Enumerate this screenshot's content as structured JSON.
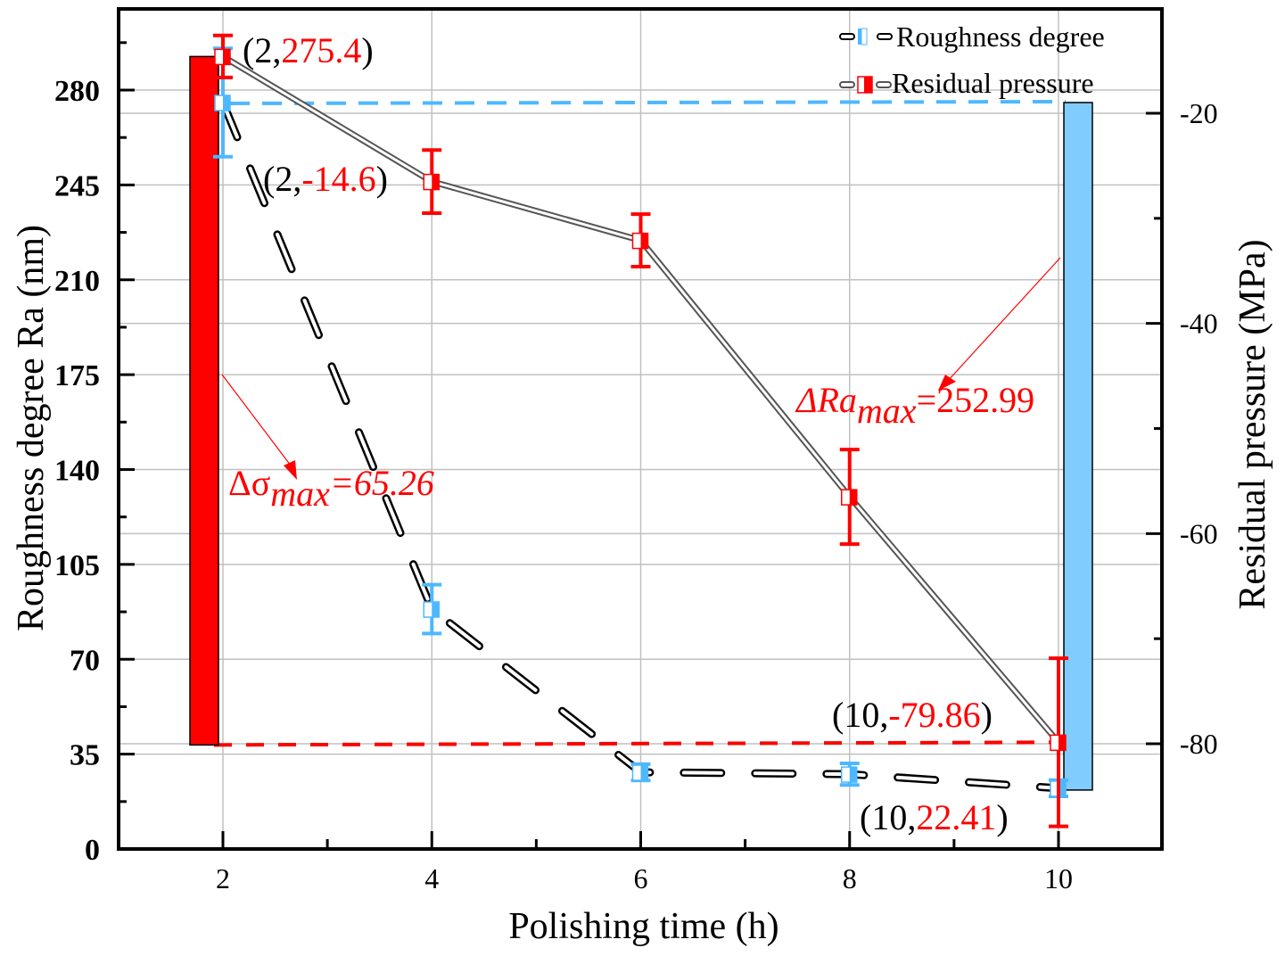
{
  "chart_data": {
    "type": "line",
    "title": "",
    "xlabel": "Polishing time (h)",
    "ylabel_left": "Roughness degree Ra (nm)",
    "ylabel_right": "Residual pressure (MPa)",
    "x": [
      2,
      4,
      6,
      8,
      10
    ],
    "xlim": [
      1,
      11
    ],
    "x_ticks": [
      "2",
      "4",
      "6",
      "8",
      "10"
    ],
    "ylim_left": [
      0,
      313
    ],
    "y_ticks_left": [
      "0",
      "35",
      "70",
      "105",
      "140",
      "175",
      "210",
      "245",
      "280"
    ],
    "ylim_right": [
      -90,
      -10
    ],
    "y_ticks_right": [
      "-20",
      "-40",
      "-60",
      "-80"
    ],
    "grid": true,
    "legend_position": "top-right",
    "series": [
      {
        "name": "Roughness degree",
        "axis": "left",
        "color": "#4db8ff",
        "line_style": "dashed",
        "values": [
          275.4,
          88.5,
          28.3,
          27.6,
          22.41
        ],
        "errors": [
          20,
          9,
          3,
          4,
          3
        ]
      },
      {
        "name": "Residual pressure",
        "axis": "right",
        "color": "#ff0000",
        "line_style": "solid",
        "values": [
          -14.6,
          -26.5,
          -32.1,
          -56.5,
          -79.86
        ],
        "errors": [
          2,
          3,
          2.5,
          4.5,
          8
        ]
      }
    ],
    "range_bars": [
      {
        "name": "residual-range-bar",
        "axis": "right",
        "x": 2,
        "from": -14.6,
        "to": -79.86,
        "color": "#ff0000"
      },
      {
        "name": "roughness-range-bar",
        "axis": "left",
        "x": 10,
        "from": 275.4,
        "to": 22.41,
        "color": "#80ccff"
      }
    ],
    "reference_lines": [
      {
        "name": "roughness-max-line",
        "axis": "left",
        "value": 275.4,
        "color": "#4db8ff"
      },
      {
        "name": "residual-min-line",
        "axis": "right",
        "value": -79.86,
        "color": "#ff0000"
      }
    ],
    "annotations": {
      "pt_2_res": {
        "prefix": "(2,",
        "value": "275.4",
        "suffix": ")"
      },
      "pt_2_rough": {
        "prefix": "(2,",
        "value": "-14.6",
        "suffix": ")"
      },
      "pt_10_res": {
        "prefix": "(10,",
        "value": "-79.86",
        "suffix": ")"
      },
      "pt_10_rough": {
        "prefix": "(10,",
        "value": "22.41",
        "suffix": ")"
      },
      "delta_sigma": {
        "symbol": "Δσ",
        "sub": "max",
        "value": "=65.26"
      },
      "delta_ra": {
        "symbol": "ΔRa",
        "sub": "max",
        "value": "=252.99"
      }
    }
  }
}
